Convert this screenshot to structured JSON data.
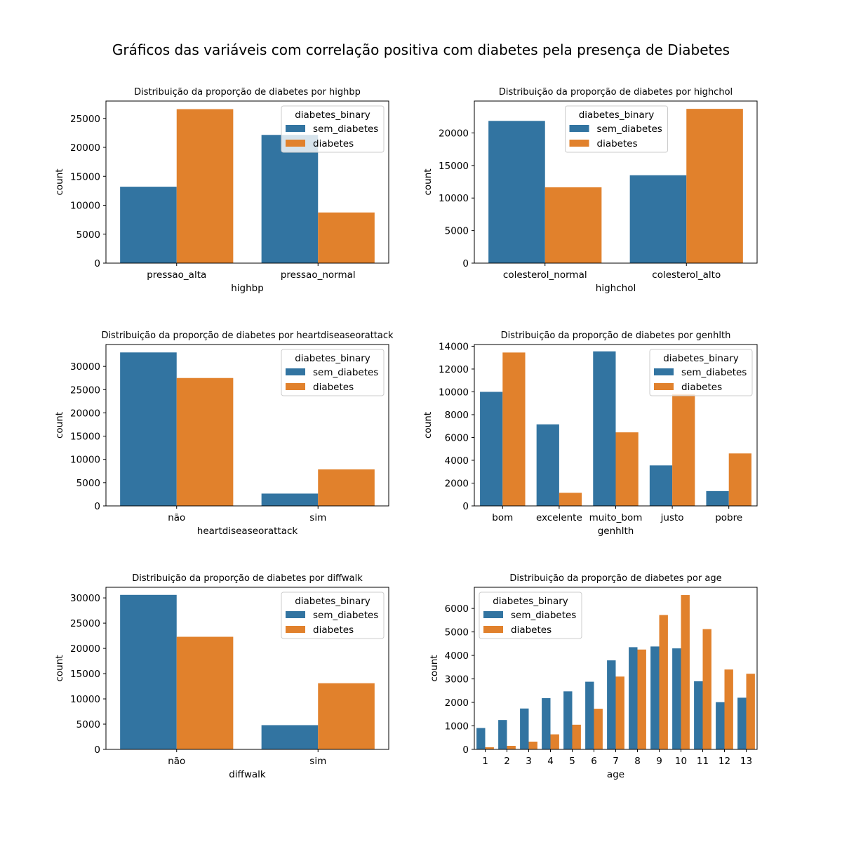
{
  "suptitle": "Gráficos das variáveis com correlação positiva com diabetes pela presença de Diabetes",
  "colors": {
    "sem_diabetes": "#3274a1",
    "diabetes": "#e1812c"
  },
  "chart_data": [
    {
      "type": "bar",
      "title": "Distribuição da proporção de diabetes por highbp",
      "xlabel": "highbp",
      "ylabel": "count",
      "categories": [
        "pressao_alta",
        "pressao_normal"
      ],
      "ylim": [
        0,
        28000
      ],
      "yticks": [
        0,
        5000,
        10000,
        15000,
        20000,
        25000
      ],
      "legend": {
        "title": "diabetes_binary",
        "placement": "upper right"
      },
      "series": [
        {
          "name": "sem_diabetes",
          "values": [
            13200,
            22150
          ]
        },
        {
          "name": "diabetes",
          "values": [
            26600,
            8750
          ]
        }
      ]
    },
    {
      "type": "bar",
      "title": "Distribuição da proporção de diabetes por highchol",
      "xlabel": "highchol",
      "ylabel": "count",
      "categories": [
        "colesterol_normal",
        "colesterol_alto"
      ],
      "ylim": [
        0,
        24900
      ],
      "yticks": [
        0,
        5000,
        10000,
        15000,
        20000
      ],
      "legend": {
        "title": "diabetes_binary",
        "placement": "upper center"
      },
      "series": [
        {
          "name": "sem_diabetes",
          "values": [
            21850,
            13500
          ]
        },
        {
          "name": "diabetes",
          "values": [
            11650,
            23700
          ]
        }
      ]
    },
    {
      "type": "bar",
      "title": "Distribuição da proporção de diabetes por heartdiseaseorattack",
      "xlabel": "heartdiseaseorattack",
      "ylabel": "count",
      "categories": [
        "não",
        "sim"
      ],
      "ylim": [
        0,
        34700
      ],
      "yticks": [
        0,
        5000,
        10000,
        15000,
        20000,
        25000,
        30000
      ],
      "legend": {
        "title": "diabetes_binary",
        "placement": "upper right"
      },
      "series": [
        {
          "name": "sem_diabetes",
          "values": [
            33000,
            2650
          ]
        },
        {
          "name": "diabetes",
          "values": [
            27500,
            7850
          ]
        }
      ]
    },
    {
      "type": "bar",
      "title": "Distribuição da proporção de diabetes por genhlth",
      "xlabel": "genhlth",
      "ylabel": "count",
      "categories": [
        "bom",
        "excelente",
        "muito_bom",
        "justo",
        "pobre"
      ],
      "ylim": [
        0,
        14150
      ],
      "yticks": [
        0,
        2000,
        4000,
        6000,
        8000,
        10000,
        12000,
        14000
      ],
      "legend": {
        "title": "diabetes_binary",
        "placement": "upper right"
      },
      "series": [
        {
          "name": "sem_diabetes",
          "values": [
            10000,
            7150,
            13550,
            3550,
            1300
          ]
        },
        {
          "name": "diabetes",
          "values": [
            13450,
            1150,
            6450,
            9800,
            4600
          ]
        }
      ]
    },
    {
      "type": "bar",
      "title": "Distribuição da proporção de diabetes por diffwalk",
      "xlabel": "diffwalk",
      "ylabel": "count",
      "categories": [
        "não",
        "sim"
      ],
      "ylim": [
        0,
        32100
      ],
      "yticks": [
        0,
        5000,
        10000,
        15000,
        20000,
        25000,
        30000
      ],
      "legend": {
        "title": "diabetes_binary",
        "placement": "upper right"
      },
      "series": [
        {
          "name": "sem_diabetes",
          "values": [
            30600,
            4800
          ]
        },
        {
          "name": "diabetes",
          "values": [
            22300,
            13100
          ]
        }
      ]
    },
    {
      "type": "bar",
      "title": "Distribuição da proporção de diabetes por age",
      "xlabel": "age",
      "ylabel": "count",
      "categories": [
        "1",
        "2",
        "3",
        "4",
        "5",
        "6",
        "7",
        "8",
        "9",
        "10",
        "11",
        "12",
        "13"
      ],
      "ylim": [
        0,
        6900
      ],
      "yticks": [
        0,
        1000,
        2000,
        3000,
        4000,
        5000,
        6000
      ],
      "legend": {
        "title": "diabetes_binary",
        "placement": "upper left"
      },
      "series": [
        {
          "name": "sem_diabetes",
          "values": [
            910,
            1250,
            1740,
            2180,
            2470,
            2880,
            3790,
            4350,
            4380,
            4300,
            2900,
            2010,
            2200
          ]
        },
        {
          "name": "diabetes",
          "values": [
            90,
            150,
            330,
            640,
            1050,
            1730,
            3100,
            4250,
            5720,
            6570,
            5120,
            3400,
            3220
          ]
        }
      ]
    }
  ]
}
